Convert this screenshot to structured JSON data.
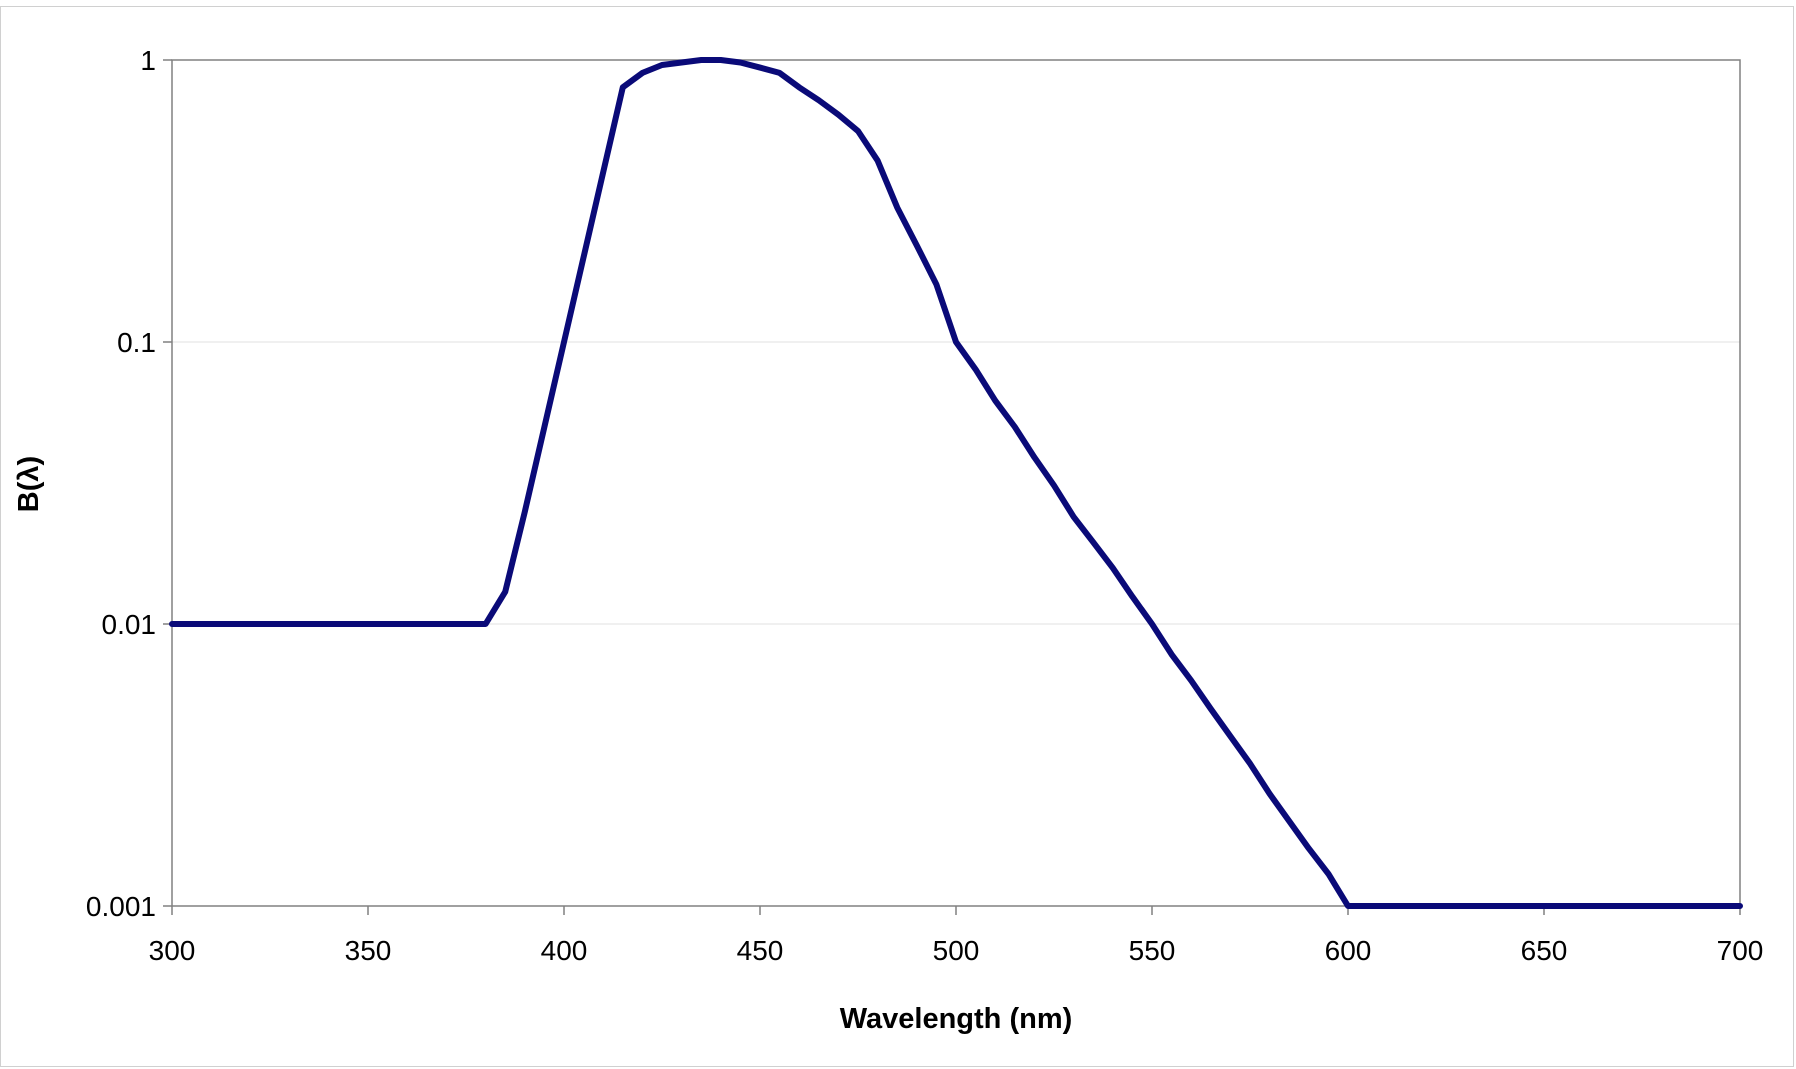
{
  "chart_data": {
    "type": "line",
    "title": "",
    "xlabel": "Wavelength (nm)",
    "ylabel": "B(λ)",
    "x_scale": "linear",
    "y_scale": "log",
    "xlim": [
      300,
      700
    ],
    "ylim": [
      0.001,
      1
    ],
    "x_ticks": [
      300,
      350,
      400,
      450,
      500,
      550,
      600,
      650,
      700
    ],
    "x_tick_labels": [
      "300",
      "350",
      "400",
      "450",
      "500",
      "550",
      "600",
      "650",
      "700"
    ],
    "y_ticks": [
      1,
      0.1,
      0.01,
      0.001
    ],
    "y_tick_labels": [
      "1",
      "0.1",
      "0.01",
      "0.001"
    ],
    "grid": true,
    "legend": "none",
    "line_color": "#0a0a78",
    "series": [
      {
        "x": [
          300,
          380,
          385,
          390,
          395,
          400,
          405,
          410,
          415,
          420,
          425,
          430,
          435,
          440,
          445,
          450,
          455,
          460,
          465,
          470,
          475,
          480,
          485,
          490,
          495,
          500,
          505,
          510,
          515,
          520,
          525,
          530,
          535,
          540,
          545,
          550,
          555,
          560,
          565,
          570,
          575,
          580,
          585,
          590,
          595,
          600,
          700
        ],
        "y": [
          0.01,
          0.01,
          0.013,
          0.025,
          0.05,
          0.1,
          0.2,
          0.4,
          0.8,
          0.9,
          0.96,
          0.98,
          1.0,
          1.0,
          0.98,
          0.94,
          0.9,
          0.8,
          0.72,
          0.64,
          0.56,
          0.44,
          0.3,
          0.22,
          0.16,
          0.1,
          0.08,
          0.062,
          0.05,
          0.039,
          0.031,
          0.024,
          0.0195,
          0.0158,
          0.0125,
          0.01,
          0.0078,
          0.0063,
          0.005,
          0.004,
          0.0032,
          0.0025,
          0.002,
          0.0016,
          0.0013,
          0.001,
          0.001
        ]
      }
    ]
  }
}
